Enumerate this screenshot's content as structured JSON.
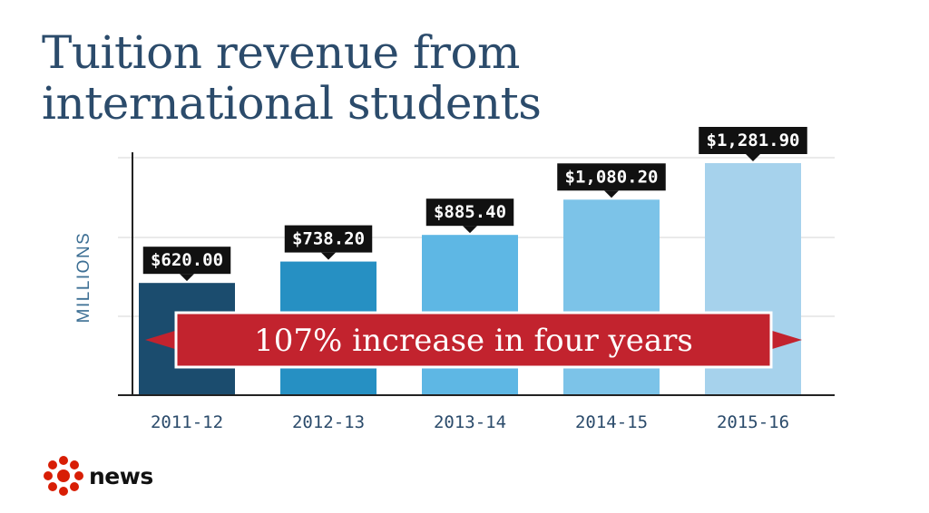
{
  "title_lines": [
    "Tuition revenue from",
    "international students"
  ],
  "chart_data": {
    "type": "bar",
    "title": "Tuition revenue from international students",
    "xlabel": "",
    "ylabel": "MILLIONS",
    "categories": [
      "2011-12",
      "2012-13",
      "2013-14",
      "2014-15",
      "2015-16"
    ],
    "values": [
      620.0,
      738.2,
      885.4,
      1080.2,
      1281.9
    ],
    "value_labels": [
      "$620.00",
      "$738.20",
      "$885.40",
      "$1,080.20",
      "$1,281.90"
    ],
    "bar_colors": [
      "#1b4c6e",
      "#2690c3",
      "#5eb7e4",
      "#7cc3e8",
      "#a6d2ec"
    ],
    "ylim": [
      0,
      1300
    ],
    "grid": true,
    "annotation": {
      "text": "107% increase in four years",
      "color": "#c2232e"
    }
  },
  "logo": {
    "text": "news",
    "icon": "cbc-gem-icon",
    "color": "#d81e05"
  }
}
